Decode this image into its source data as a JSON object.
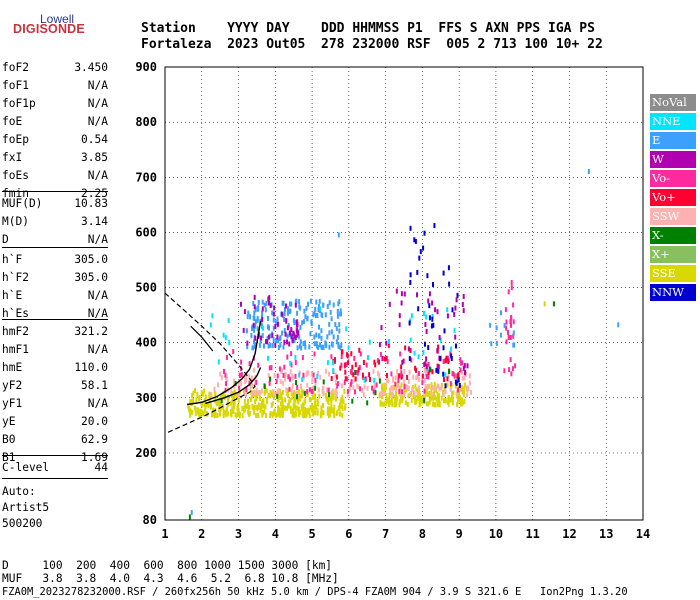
{
  "logo": {
    "top": "Lowell",
    "main": "DIGISONDE"
  },
  "header": {
    "labels": "Station    YYYY DAY    DDD HHMMSS P1  FFS S AXN PPS IGA PS",
    "values": "Fortaleza  2023 Out05  278 232000 RSF  005 2 713 100 10+ 22"
  },
  "params": {
    "group1": [
      {
        "name": "foF2",
        "value": "3.450"
      },
      {
        "name": "foF1",
        "value": "N/A"
      },
      {
        "name": "foF1p",
        "value": "N/A"
      },
      {
        "name": "foE",
        "value": "N/A"
      },
      {
        "name": "foEp",
        "value": "0.54"
      },
      {
        "name": "fxI",
        "value": "3.85"
      },
      {
        "name": "foEs",
        "value": "N/A"
      },
      {
        "name": "fmin",
        "value": "2.25"
      }
    ],
    "group2": [
      {
        "name": "MUF(D)",
        "value": "10.83"
      },
      {
        "name": "M(D)",
        "value": "3.14"
      },
      {
        "name": "D",
        "value": "N/A"
      }
    ],
    "group3": [
      {
        "name": "h`F",
        "value": "305.0"
      },
      {
        "name": "h`F2",
        "value": "305.0"
      },
      {
        "name": "h`E",
        "value": "N/A"
      },
      {
        "name": "h`Es",
        "value": "N/A"
      }
    ],
    "group4": [
      {
        "name": "hmF2",
        "value": "321.2"
      },
      {
        "name": "hmF1",
        "value": "N/A"
      },
      {
        "name": "hmE",
        "value": "110.0"
      },
      {
        "name": "yF2",
        "value": "58.1"
      },
      {
        "name": "yF1",
        "value": "N/A"
      },
      {
        "name": "yE",
        "value": "20.0"
      },
      {
        "name": "B0",
        "value": "62.9"
      },
      {
        "name": "B1",
        "value": "1.69"
      }
    ],
    "group5": [
      {
        "name": "C-level",
        "value": "44"
      }
    ],
    "autoscale": {
      "line1": "Auto:",
      "line2": "Artist5",
      "line3": "500200"
    }
  },
  "legend": [
    {
      "label": "NoVal",
      "color": "#8c8c8c"
    },
    {
      "label": "NNE",
      "color": "#00e5ff"
    },
    {
      "label": "E",
      "color": "#3ca0ff"
    },
    {
      "label": "W",
      "color": "#b000b0"
    },
    {
      "label": "Vo-",
      "color": "#ff2aa0"
    },
    {
      "label": "Vo+",
      "color": "#ff0030"
    },
    {
      "label": "SSW",
      "color": "#ffb0b0"
    },
    {
      "label": "X-",
      "color": "#008000"
    },
    {
      "label": "X+",
      "color": "#88c060"
    },
    {
      "label": "SSE",
      "color": "#d8d800"
    },
    {
      "label": "NNW",
      "color": "#0000d0"
    }
  ],
  "footer": {
    "d_row": "D     100  200  400  600  800 1000 1500 3000 [km]",
    "muf_row": "MUF   3.8  3.8  4.0  4.3  4.6  5.2  6.8 10.8 [MHz]",
    "info_row": "FZA0M_2023278232000.RSF / 260fx256h 50 kHz 5.0 km / DPS-4 FZA0M 904 / 3.9 S 321.6 E   Ion2Png 1.3.20"
  },
  "chart_data": {
    "type": "scatter",
    "title": "",
    "xlabel": "",
    "ylabel": "",
    "xlim": [
      1,
      14
    ],
    "ylim": [
      80,
      900
    ],
    "xticks": [
      "1",
      "2",
      "3",
      "4",
      "5",
      "6",
      "7",
      "8",
      "9",
      "10",
      "11",
      "12",
      "13",
      "14"
    ],
    "yticks": [
      "80",
      "200",
      "300",
      "400",
      "500",
      "600",
      "700",
      "800",
      "900"
    ],
    "grid": true,
    "echo_clusters": [
      {
        "legend": "SSE",
        "x_range": [
          1.6,
          5.9
        ],
        "h_range": [
          272,
          318
        ],
        "count": 420
      },
      {
        "legend": "SSE",
        "x_range": [
          6.8,
          9.2
        ],
        "h_range": [
          292,
          330
        ],
        "count": 220
      },
      {
        "legend": "SSW",
        "x_range": [
          2.2,
          9.3
        ],
        "h_range": [
          310,
          355
        ],
        "count": 200
      },
      {
        "legend": "Vo-",
        "x_range": [
          2.5,
          9.2
        ],
        "h_range": [
          315,
          390
        ],
        "count": 110
      },
      {
        "legend": "Vo+",
        "x_range": [
          5.5,
          9.0
        ],
        "h_range": [
          335,
          400
        ],
        "count": 60
      },
      {
        "legend": "E",
        "x_range": [
          3.2,
          5.8
        ],
        "h_range": [
          395,
          480
        ],
        "count": 190
      },
      {
        "legend": "W",
        "x_range": [
          3.0,
          4.6
        ],
        "h_range": [
          400,
          490
        ],
        "count": 50
      },
      {
        "legend": "NNE",
        "x_range": [
          2.0,
          9.0
        ],
        "h_range": [
          330,
          470
        ],
        "count": 40
      },
      {
        "legend": "X-",
        "x_range": [
          2.0,
          9.0
        ],
        "h_range": [
          295,
          360
        ],
        "count": 20
      },
      {
        "legend": "NNW",
        "x_range": [
          7.6,
          9.0
        ],
        "h_range": [
          320,
          620
        ],
        "count": 40
      },
      {
        "legend": "W",
        "x_range": [
          6.8,
          9.2
        ],
        "h_range": [
          350,
          500
        ],
        "count": 40
      },
      {
        "legend": "Vo-",
        "x_range": [
          10.2,
          10.5
        ],
        "h_range": [
          345,
          520
        ],
        "count": 25
      },
      {
        "legend": "E",
        "x_range": [
          9.8,
          10.5
        ],
        "h_range": [
          400,
          510
        ],
        "count": 10
      }
    ],
    "isolated_points": [
      {
        "legend": "X-",
        "x": 1.65,
        "h": 90
      },
      {
        "legend": "E",
        "x": 1.7,
        "h": 98
      },
      {
        "legend": "E",
        "x": 12.5,
        "h": 715
      },
      {
        "legend": "E",
        "x": 13.3,
        "h": 437
      },
      {
        "legend": "X-",
        "x": 11.55,
        "h": 475
      },
      {
        "legend": "SSE",
        "x": 11.3,
        "h": 475
      },
      {
        "legend": "E",
        "x": 5.7,
        "h": 600
      },
      {
        "legend": "NNW",
        "x": 7.65,
        "h": 612
      },
      {
        "legend": "NNW",
        "x": 8.3,
        "h": 617
      }
    ],
    "dashed_profile": [
      [
        1,
        490
      ],
      [
        1.5,
        460
      ],
      [
        2,
        430
      ],
      [
        2.5,
        398
      ],
      [
        3,
        360
      ],
      [
        3.3,
        335
      ],
      [
        3.45,
        321
      ],
      [
        3.3,
        310
      ],
      [
        3,
        300
      ],
      [
        2.5,
        282
      ],
      [
        2,
        265
      ],
      [
        1.5,
        250
      ],
      [
        1,
        235
      ]
    ],
    "trace_o": [
      [
        1.6,
        288
      ],
      [
        2.0,
        292
      ],
      [
        2.4,
        302
      ],
      [
        2.8,
        318
      ],
      [
        3.1,
        335
      ],
      [
        3.3,
        352
      ],
      [
        3.45,
        380
      ],
      [
        3.55,
        420
      ],
      [
        3.6,
        440
      ]
    ],
    "trace_x": [
      [
        2.1,
        290
      ],
      [
        2.6,
        300
      ],
      [
        3.0,
        310
      ],
      [
        3.3,
        324
      ],
      [
        3.5,
        340
      ],
      [
        3.6,
        355
      ]
    ],
    "trace_left": [
      [
        1.7,
        430
      ],
      [
        2.0,
        410
      ],
      [
        2.3,
        385
      ]
    ]
  }
}
